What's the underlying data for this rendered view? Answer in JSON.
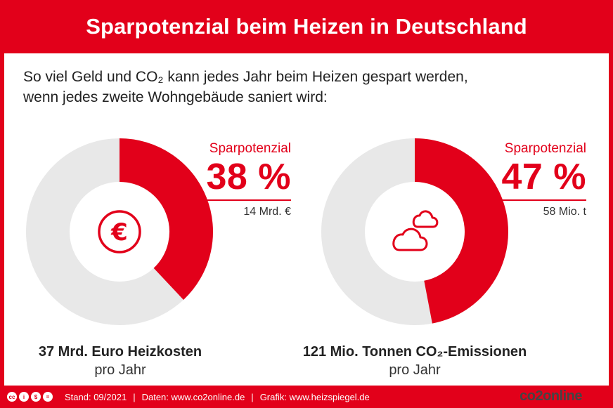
{
  "title": "Sparpotenzial beim Heizen in Deutschland",
  "subtitle": {
    "line1": "So viel Geld und CO₂ kann jedes Jahr beim Heizen gespart werden,",
    "line2": "wenn jedes zweite Wohngebäude saniert wird:"
  },
  "colors": {
    "accent": "#e2001a",
    "track": "#e8e8e8"
  },
  "chart_data": [
    {
      "type": "pie",
      "variant": "donut",
      "icon": "euro-icon",
      "values": [
        38,
        62
      ],
      "kpi_label": "Sparpotenzial",
      "percent_label": "38 %",
      "absolute_label": "14 Mrd. €",
      "caption_main": "37 Mrd. Euro Heizkosten",
      "caption_sub": "pro Jahr"
    },
    {
      "type": "pie",
      "variant": "donut",
      "icon": "cloud-icon",
      "values": [
        47,
        53
      ],
      "kpi_label": "Sparpotenzial",
      "percent_label": "47 %",
      "absolute_label": "58 Mio. t",
      "caption_main": "121 Mio. Tonnen CO₂-Emissionen",
      "caption_sub": "pro Jahr"
    }
  ],
  "footer": {
    "license_icons": [
      "cc-icon",
      "by-icon",
      "nc-icon",
      "nd-icon"
    ],
    "stand": "Stand: 09/2021",
    "separator": "|",
    "daten": "Daten: www.co2online.de",
    "grafik": "Grafik: www.heizspiegel.de",
    "brand": "co2online"
  }
}
